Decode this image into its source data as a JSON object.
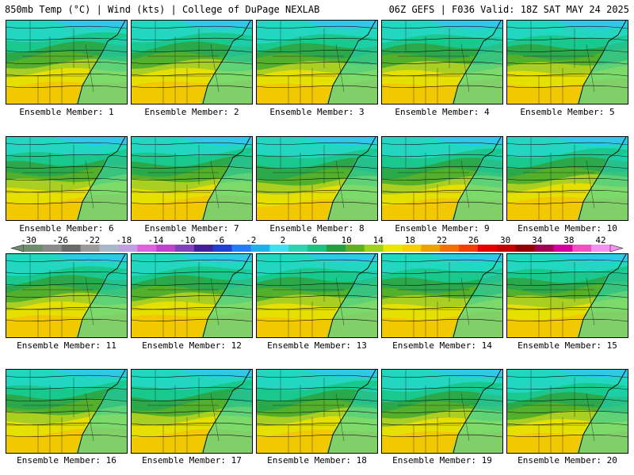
{
  "header": {
    "title_left": "850mb Temp (°C) | Wind (kts) | College of DuPage NEXLAB",
    "title_right": "06Z GEFS | F036 Valid: 18Z SAT MAY 24 2025"
  },
  "members": [
    {
      "label": "Ensemble Member: 1",
      "warmth": 0.5
    },
    {
      "label": "Ensemble Member: 2",
      "warmth": 0.55
    },
    {
      "label": "Ensemble Member: 3",
      "warmth": 0.45
    },
    {
      "label": "Ensemble Member: 4",
      "warmth": 0.5
    },
    {
      "label": "Ensemble Member: 5",
      "warmth": 0.48
    },
    {
      "label": "Ensemble Member: 6",
      "warmth": 0.52
    },
    {
      "label": "Ensemble Member: 7",
      "warmth": 0.55
    },
    {
      "label": "Ensemble Member: 8",
      "warmth": 0.35
    },
    {
      "label": "Ensemble Member: 9",
      "warmth": 0.42
    },
    {
      "label": "Ensemble Member: 10",
      "warmth": 0.58
    },
    {
      "label": "Ensemble Member: 11",
      "warmth": 0.55
    },
    {
      "label": "Ensemble Member: 12",
      "warmth": 0.62
    },
    {
      "label": "Ensemble Member: 13",
      "warmth": 0.5
    },
    {
      "label": "Ensemble Member: 14",
      "warmth": 0.52
    },
    {
      "label": "Ensemble Member: 15",
      "warmth": 0.55
    },
    {
      "label": "Ensemble Member: 16",
      "warmth": 0.55
    },
    {
      "label": "Ensemble Member: 17",
      "warmth": 0.5
    },
    {
      "label": "Ensemble Member: 18",
      "warmth": 0.52
    },
    {
      "label": "Ensemble Member: 19",
      "warmth": 0.45
    },
    {
      "label": "Ensemble Member: 20",
      "warmth": 0.4
    }
  ],
  "colorbar": {
    "labels": [
      "-30",
      "-26",
      "-22",
      "-18",
      "-14",
      "-10",
      "-6",
      "-2",
      "2",
      "6",
      "10",
      "14",
      "18",
      "22",
      "26",
      "30",
      "34",
      "38",
      "42"
    ],
    "colors": [
      "#6e8c6e",
      "#8a8a8a",
      "#6a6a6a",
      "#9a9a9a",
      "#a8b8c8",
      "#c0a0e0",
      "#e060e0",
      "#c040d0",
      "#8040c0",
      "#4020a0",
      "#2040d0",
      "#2080f0",
      "#20b0f0",
      "#40e0f0",
      "#30d0b0",
      "#20c080",
      "#20a040",
      "#60b020",
      "#a0d020",
      "#e8e800",
      "#f8d000",
      "#f0a000",
      "#f07000",
      "#f04000",
      "#e00000",
      "#c00000",
      "#900000",
      "#a00050",
      "#d000a0",
      "#f050c0",
      "#f890f0"
    ]
  }
}
